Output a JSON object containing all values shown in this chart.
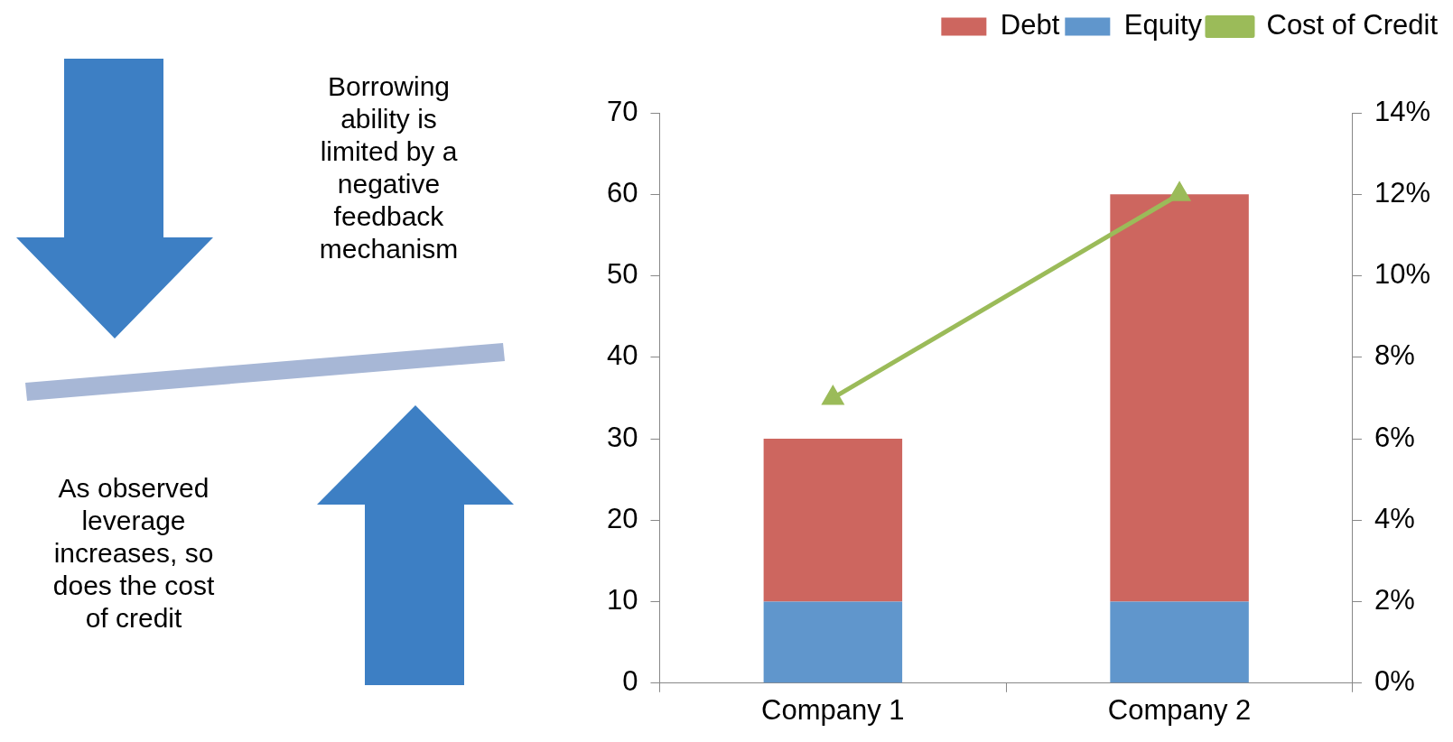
{
  "chart_data": {
    "type": "bar",
    "stacked": true,
    "categories": [
      "Company 1",
      "Company 2"
    ],
    "series": [
      {
        "name": "Equity",
        "color": "#6096cc",
        "values": [
          10,
          10
        ]
      },
      {
        "name": "Debt",
        "color": "#cd665f",
        "values": [
          20,
          50
        ]
      },
      {
        "name": "Cost of Credit",
        "type": "line",
        "axis": "y2",
        "color": "#9bbb59",
        "marker": "triangle",
        "values": [
          7,
          12
        ]
      }
    ],
    "ylim": [
      0,
      70
    ],
    "yticks": [
      0,
      10,
      20,
      30,
      40,
      50,
      60,
      70
    ],
    "y2lim": [
      0,
      14
    ],
    "y2ticks": [
      {
        "value": 0,
        "label": "0%"
      },
      {
        "value": 2,
        "label": "2%"
      },
      {
        "value": 4,
        "label": "4%"
      },
      {
        "value": 6,
        "label": "6%"
      },
      {
        "value": 8,
        "label": "8%"
      },
      {
        "value": 10,
        "label": "10%"
      },
      {
        "value": 12,
        "label": "12%"
      },
      {
        "value": 14,
        "label": "14%"
      }
    ],
    "legend": "top right",
    "grid": false,
    "annotations": [
      "Borrowing ability is limited by a negative feedback mechanism",
      "As observed leverage increases, so does the cost of credit"
    ]
  }
}
